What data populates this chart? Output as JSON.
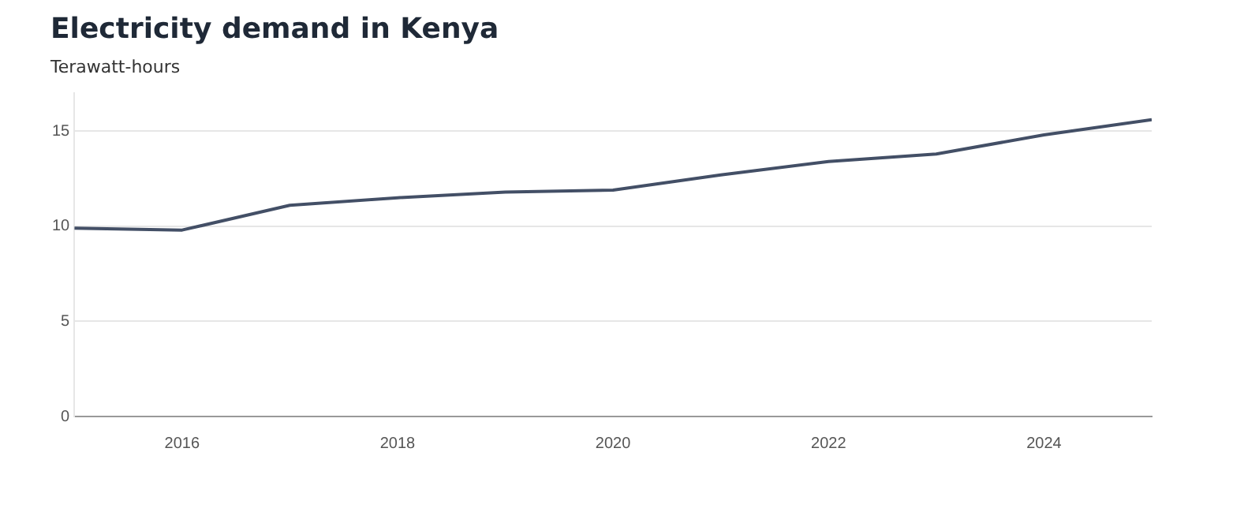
{
  "chart_data": {
    "type": "line",
    "title": "Electricity demand in Kenya",
    "subtitle": "Terawatt-hours",
    "x": [
      2015,
      2016,
      2017,
      2018,
      2019,
      2020,
      2021,
      2022,
      2023,
      2024,
      2025
    ],
    "series": [
      {
        "color": "#434f66",
        "values": [
          9.9,
          9.8,
          11.1,
          11.5,
          11.8,
          11.9,
          12.7,
          13.4,
          13.8,
          14.8,
          15.6
        ]
      }
    ],
    "xlim": [
      2015,
      2025
    ],
    "xticks": [
      2016,
      2018,
      2020,
      2022,
      2024
    ],
    "ylim": [
      0,
      17
    ],
    "yticks": [
      0,
      5,
      10,
      15
    ],
    "grid": "y",
    "legend": false,
    "marker": "none",
    "line_style": "solid"
  }
}
